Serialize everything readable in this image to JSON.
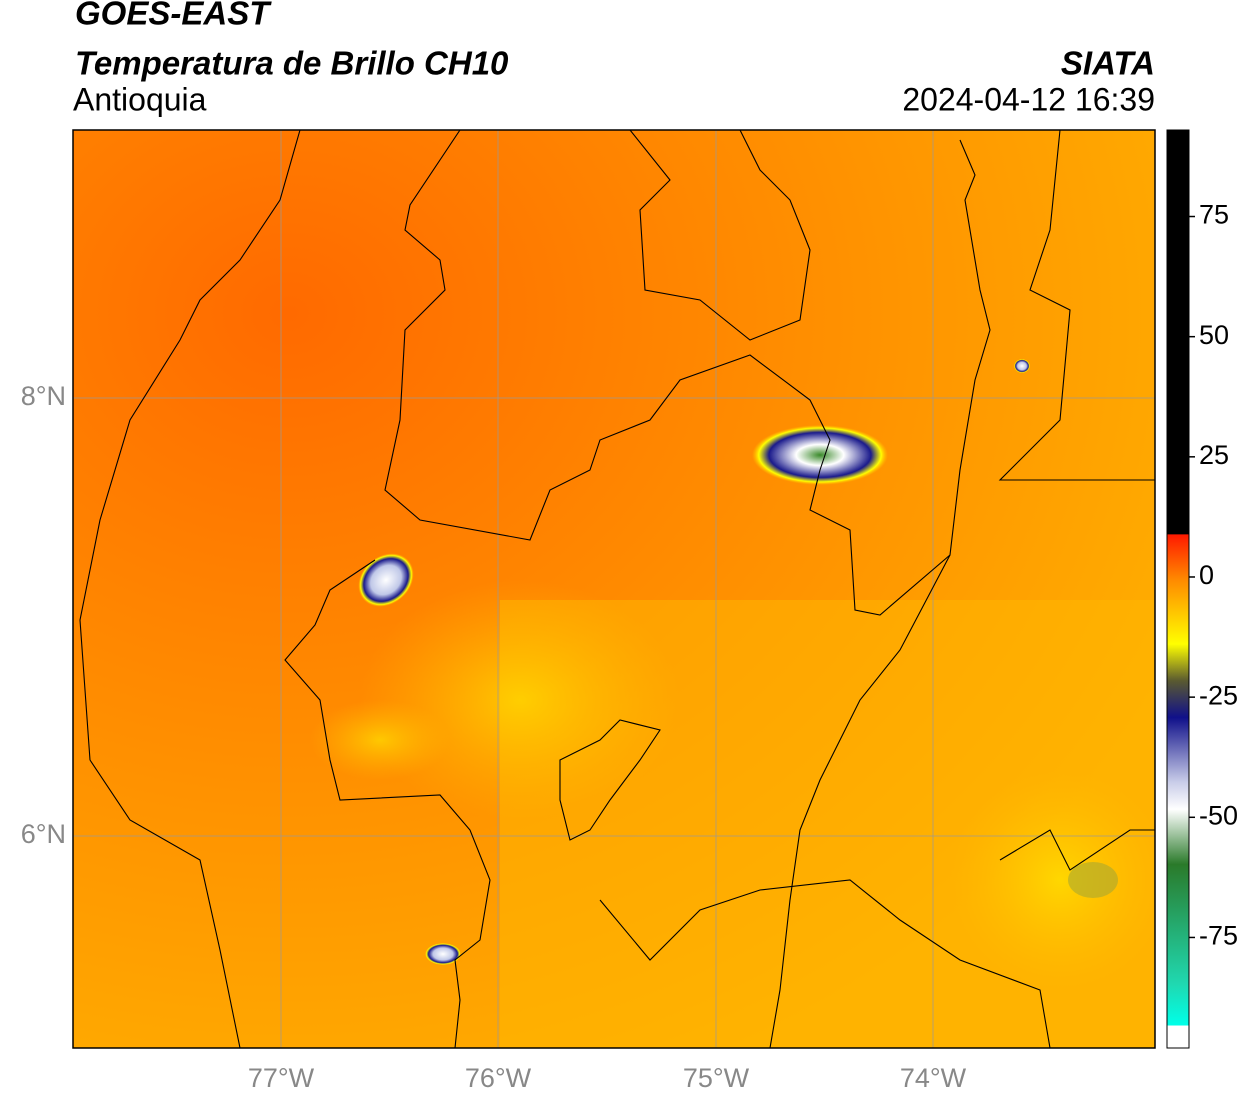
{
  "header": {
    "title": "GOES-EAST",
    "product": "Temperatura de Brillo CH10",
    "region": "Antioquia",
    "source": "SIATA",
    "datetime": "2024-04-12 16:39"
  },
  "map": {
    "lat_labels": [
      "8°N",
      "6°N"
    ],
    "lon_labels": [
      "77°W",
      "76°W",
      "75°W",
      "74°W"
    ]
  },
  "colorbar": {
    "lim": [
      -98,
      93
    ],
    "ticks": [
      75,
      50,
      25,
      0,
      -25,
      -50,
      -75
    ]
  }
}
